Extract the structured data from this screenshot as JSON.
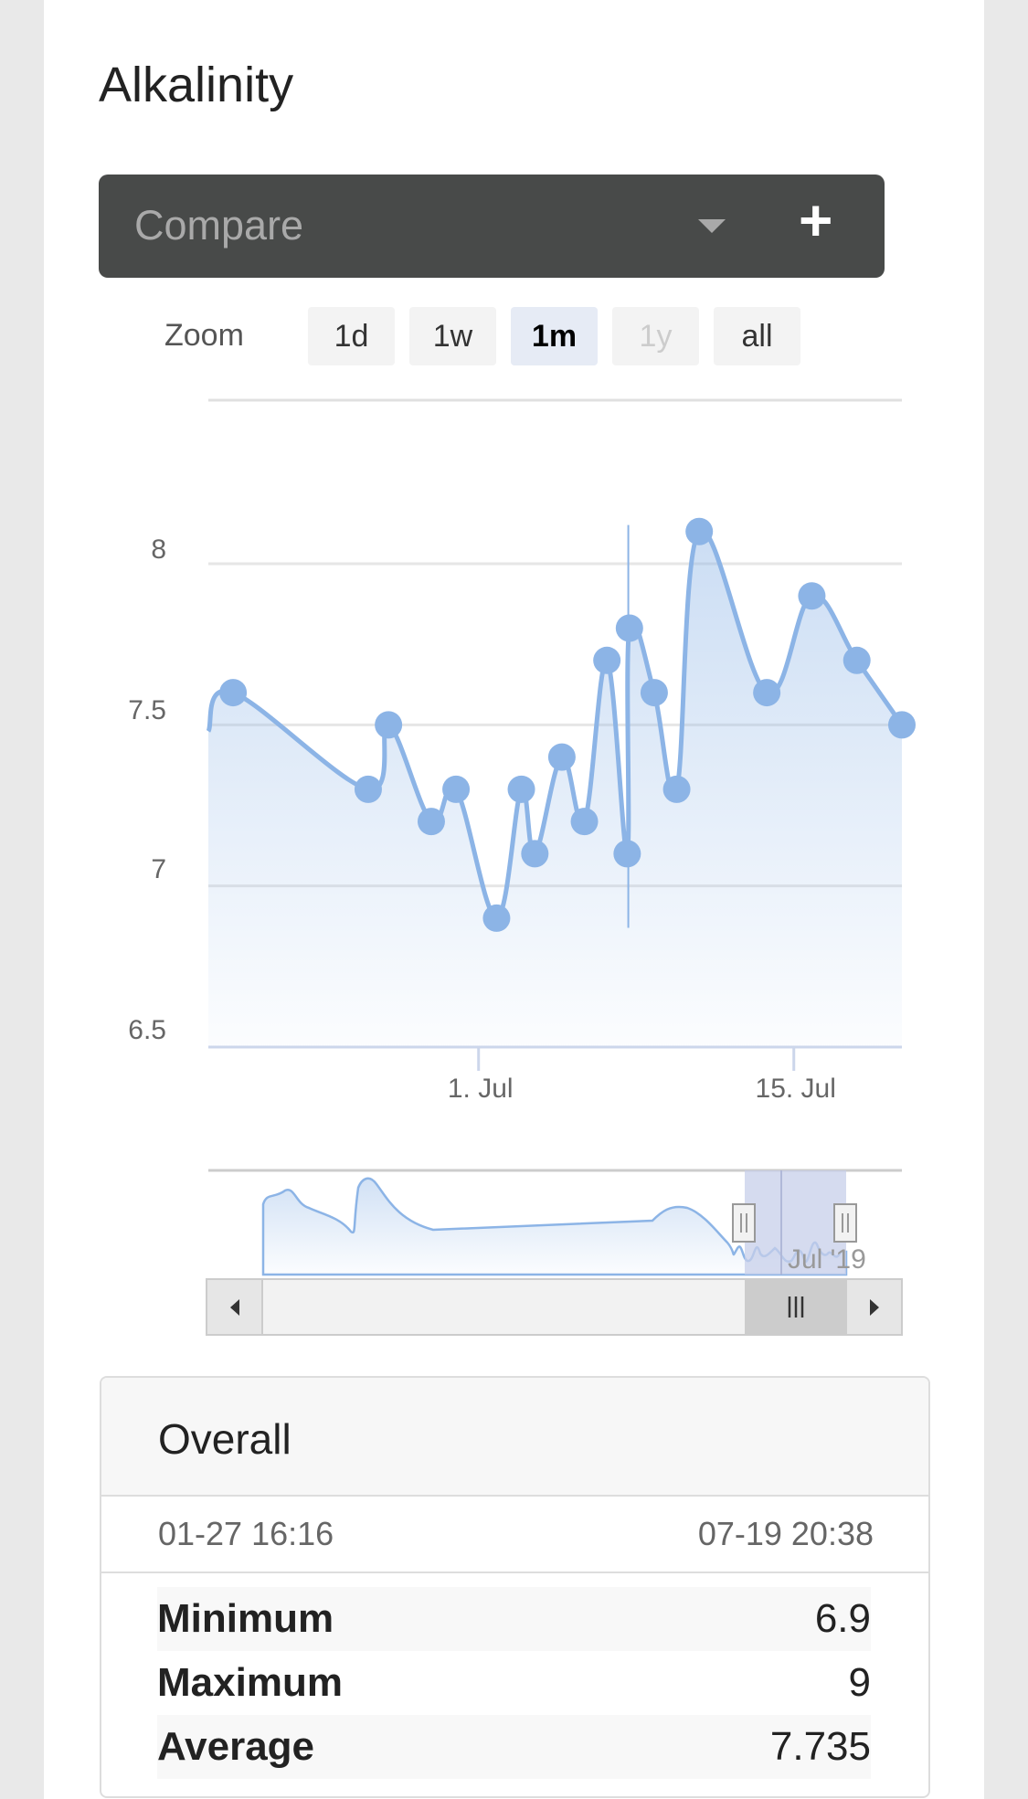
{
  "header": {
    "title": "Alkalinity"
  },
  "compare": {
    "placeholder": "Compare",
    "add_label": "+"
  },
  "zoom": {
    "label": "Zoom",
    "buttons": [
      {
        "label": "1d",
        "state": "normal"
      },
      {
        "label": "1w",
        "state": "normal"
      },
      {
        "label": "1m",
        "state": "active"
      },
      {
        "label": "1y",
        "state": "disabled"
      },
      {
        "label": "all",
        "state": "normal"
      }
    ]
  },
  "chart_data": {
    "type": "area",
    "y_ticks": [
      "8",
      "7.5",
      "7",
      "6.5"
    ],
    "x_ticks": [
      "1. Jul",
      "15. Jul"
    ],
    "ylim": [
      6.5,
      8.2
    ],
    "grid": true,
    "x_unit": "day-of-month-july",
    "series": [
      {
        "values": [
          {
            "x": 20.1,
            "y": 7.6
          },
          {
            "x": 26.1,
            "y": 7.3
          },
          {
            "x": 27.0,
            "y": 7.5
          },
          {
            "x": 28.9,
            "y": 7.2
          },
          {
            "x": 30.0,
            "y": 7.3
          },
          {
            "x": 31.8,
            "y": 6.9
          },
          {
            "x": 32.9,
            "y": 7.3
          },
          {
            "x": 33.5,
            "y": 7.1
          },
          {
            "x": 34.7,
            "y": 7.4
          },
          {
            "x": 35.7,
            "y": 7.2
          },
          {
            "x": 36.7,
            "y": 7.7
          },
          {
            "x": 37.6,
            "y": 7.1
          },
          {
            "x": 37.7,
            "y": 7.8
          },
          {
            "x": 38.8,
            "y": 7.6
          },
          {
            "x": 39.8,
            "y": 7.3
          },
          {
            "x": 40.8,
            "y": 8.1
          },
          {
            "x": 43.8,
            "y": 7.6
          },
          {
            "x": 45.8,
            "y": 7.9
          },
          {
            "x": 47.8,
            "y": 7.7
          },
          {
            "x": 49.8,
            "y": 7.5
          }
        ]
      }
    ],
    "navigator": {
      "label": "Jul '19"
    }
  },
  "stats": {
    "title": "Overall",
    "range_start": "01-27 16:16",
    "range_end": "07-19 20:38",
    "rows": [
      {
        "label": "Minimum",
        "value": "6.9"
      },
      {
        "label": "Maximum",
        "value": "9"
      },
      {
        "label": "Average",
        "value": "7.735"
      }
    ]
  },
  "colors": {
    "series": "#8cb4e6",
    "compare_bg": "#484a49",
    "active_zoom": "#e6ebf5",
    "navigator_mask": "#c7cfe9"
  }
}
